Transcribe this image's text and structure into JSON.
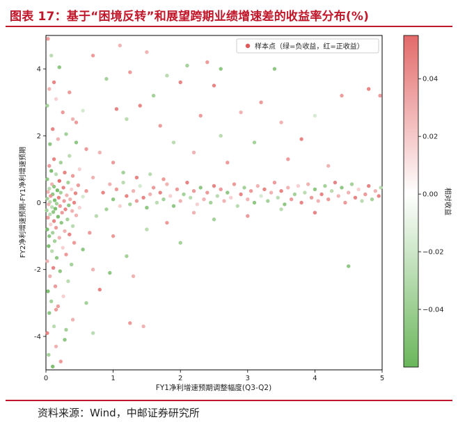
{
  "header": {
    "title": "图表 17：基于“困境反转”和展望跨期业绩增速差的收益率分布(%)"
  },
  "footer": {
    "source": "资料来源：Wind，中邮证券研究所"
  },
  "chart_data": {
    "type": "scatter",
    "xlabel": "FY1净利增速预期调整幅度(Q3-Q2)",
    "ylabel": "FY2净利增速预期-FY1净利增速预期",
    "xlim": [
      0,
      5
    ],
    "ylim": [
      -5,
      5
    ],
    "xticks": [
      "0",
      "1",
      "2",
      "3",
      "4",
      "5"
    ],
    "yticks": [
      "-4",
      "-2",
      "0",
      "2",
      "4"
    ],
    "grid": false,
    "legend": {
      "label": "样本点（绿=负收益，红=正收益）",
      "placement": "top-right"
    },
    "colorbar": {
      "label": "相对收益",
      "range": [
        -0.06,
        0.055
      ],
      "ticks": [
        "0.04",
        "0.02",
        "0.00",
        "−0.02",
        "−0.04"
      ],
      "tick_values": [
        0.04,
        0.02,
        0.0,
        -0.02,
        -0.04
      ],
      "colors": {
        "low": "#5fae4f",
        "mid": "#ffffff",
        "high": "#e05a5a"
      }
    },
    "points": [
      [
        0.03,
        4.9,
        0.03
      ],
      [
        0.08,
        4.4,
        -0.02
      ],
      [
        0.12,
        3.6,
        0.04
      ],
      [
        0.2,
        4.05,
        -0.04
      ],
      [
        0.05,
        3.4,
        0.02
      ],
      [
        0.15,
        3.1,
        0.01
      ],
      [
        0.02,
        2.9,
        -0.03
      ],
      [
        0.25,
        2.7,
        0.03
      ],
      [
        0.4,
        2.5,
        0.02
      ],
      [
        0.55,
        2.75,
        -0.01
      ],
      [
        0.45,
        2.4,
        0.03
      ],
      [
        0.1,
        2.2,
        0.04
      ],
      [
        0.3,
        2.05,
        -0.03
      ],
      [
        0.18,
        1.9,
        0.02
      ],
      [
        0.06,
        1.75,
        -0.04
      ],
      [
        0.6,
        1.6,
        0.03
      ],
      [
        0.8,
        1.5,
        0.02
      ],
      [
        0.35,
        1.4,
        -0.02
      ],
      [
        0.12,
        1.3,
        0.04
      ],
      [
        0.22,
        1.2,
        -0.03
      ],
      [
        0.05,
        1.1,
        0.03
      ],
      [
        0.5,
        1.0,
        0.01
      ],
      [
        0.08,
        0.95,
        -0.05
      ],
      [
        0.28,
        0.9,
        0.04
      ],
      [
        0.15,
        0.85,
        -0.02
      ],
      [
        0.4,
        0.8,
        0.03
      ],
      [
        0.7,
        0.75,
        0.02
      ],
      [
        0.02,
        0.7,
        -0.04
      ],
      [
        0.2,
        0.65,
        0.05
      ],
      [
        0.33,
        0.6,
        -0.03
      ],
      [
        0.09,
        0.55,
        0.02
      ],
      [
        0.48,
        0.52,
        0.03
      ],
      [
        0.12,
        0.48,
        -0.04
      ],
      [
        0.26,
        0.45,
        0.04
      ],
      [
        0.05,
        0.42,
        -0.02
      ],
      [
        0.38,
        0.4,
        0.01
      ],
      [
        0.17,
        0.37,
        -0.05
      ],
      [
        0.6,
        0.35,
        0.03
      ],
      [
        0.03,
        0.32,
        0.02
      ],
      [
        0.22,
        0.3,
        -0.03
      ],
      [
        0.44,
        0.28,
        0.04
      ],
      [
        0.1,
        0.25,
        -0.04
      ],
      [
        0.31,
        0.22,
        0.02
      ],
      [
        0.07,
        0.2,
        0.03
      ],
      [
        0.55,
        0.18,
        -0.01
      ],
      [
        0.19,
        0.15,
        0.04
      ],
      [
        0.02,
        0.12,
        -0.03
      ],
      [
        0.36,
        0.1,
        0.02
      ],
      [
        0.13,
        0.07,
        -0.05
      ],
      [
        0.27,
        0.05,
        0.03
      ],
      [
        0.06,
        0.02,
        -0.02
      ],
      [
        0.42,
        0.0,
        0.04
      ],
      [
        0.16,
        -0.03,
        -0.03
      ],
      [
        0.04,
        -0.05,
        0.02
      ],
      [
        0.34,
        -0.08,
        -0.04
      ],
      [
        0.21,
        -0.1,
        0.03
      ],
      [
        0.09,
        -0.13,
        -0.02
      ],
      [
        0.5,
        -0.15,
        0.01
      ],
      [
        0.14,
        -0.18,
        -0.05
      ],
      [
        0.29,
        -0.2,
        0.04
      ],
      [
        0.01,
        -0.23,
        -0.03
      ],
      [
        0.39,
        -0.25,
        0.02
      ],
      [
        0.11,
        -0.28,
        -0.04
      ],
      [
        0.24,
        -0.3,
        0.03
      ],
      [
        0.06,
        -0.35,
        -0.02
      ],
      [
        0.45,
        -0.38,
        0.02
      ],
      [
        0.18,
        -0.42,
        -0.05
      ],
      [
        0.03,
        -0.45,
        0.03
      ],
      [
        0.32,
        -0.5,
        -0.03
      ],
      [
        0.12,
        -0.55,
        0.04
      ],
      [
        0.23,
        -0.6,
        -0.04
      ],
      [
        0.07,
        -0.65,
        0.01
      ],
      [
        0.4,
        -0.7,
        -0.02
      ],
      [
        0.15,
        -0.75,
        0.03
      ],
      [
        0.02,
        -0.8,
        -0.05
      ],
      [
        0.28,
        -0.85,
        0.02
      ],
      [
        0.1,
        -0.9,
        -0.03
      ],
      [
        0.35,
        -0.95,
        0.04
      ],
      [
        0.05,
        -1.0,
        -0.04
      ],
      [
        0.2,
        -1.05,
        0.02
      ],
      [
        0.13,
        -1.15,
        -0.03
      ],
      [
        0.42,
        -1.2,
        0.03
      ],
      [
        0.04,
        -1.3,
        -0.05
      ],
      [
        0.25,
        -1.35,
        0.01
      ],
      [
        0.09,
        -1.45,
        -0.02
      ],
      [
        0.3,
        -1.55,
        0.03
      ],
      [
        0.16,
        -1.65,
        -0.04
      ],
      [
        0.02,
        -1.75,
        0.02
      ],
      [
        0.38,
        -1.85,
        -0.03
      ],
      [
        0.11,
        -1.95,
        0.04
      ],
      [
        0.21,
        -2.05,
        -0.04
      ],
      [
        0.06,
        -2.2,
        0.02
      ],
      [
        0.33,
        -2.35,
        -0.02
      ],
      [
        0.14,
        -2.5,
        0.03
      ],
      [
        0.03,
        -2.65,
        -0.05
      ],
      [
        0.26,
        -2.8,
        0.01
      ],
      [
        0.08,
        -2.95,
        -0.03
      ],
      [
        0.18,
        -3.1,
        0.03
      ],
      [
        0.05,
        -3.3,
        -0.04
      ],
      [
        0.4,
        -3.5,
        0.02
      ],
      [
        0.12,
        -3.7,
        -0.02
      ],
      [
        0.02,
        -3.9,
        0.04
      ],
      [
        0.28,
        -4.1,
        -0.04
      ],
      [
        0.15,
        -4.3,
        0.02
      ],
      [
        0.04,
        -4.55,
        -0.03
      ],
      [
        0.22,
        -4.75,
        0.03
      ],
      [
        0.1,
        -4.9,
        -0.05
      ],
      [
        0.6,
        -3.0,
        -0.03
      ],
      [
        0.7,
        -2.0,
        0.02
      ],
      [
        0.55,
        -1.4,
        -0.04
      ],
      [
        0.65,
        -0.9,
        0.03
      ],
      [
        0.75,
        -0.4,
        -0.02
      ],
      [
        0.85,
        0.3,
        0.04
      ],
      [
        0.9,
        -0.2,
        -0.03
      ],
      [
        0.95,
        0.55,
        0.02
      ],
      [
        1.0,
        0.1,
        -0.04
      ],
      [
        1.05,
        0.4,
        0.03
      ],
      [
        1.1,
        -0.1,
        0.01
      ],
      [
        1.15,
        0.6,
        -0.02
      ],
      [
        1.2,
        0.2,
        0.04
      ],
      [
        1.25,
        -0.05,
        -0.03
      ],
      [
        1.3,
        0.35,
        0.02
      ],
      [
        1.35,
        0.05,
        0.03
      ],
      [
        1.4,
        0.5,
        -0.01
      ],
      [
        1.45,
        0.15,
        0.04
      ],
      [
        1.5,
        -0.15,
        -0.04
      ],
      [
        1.55,
        0.25,
        0.02
      ],
      [
        1.6,
        0.45,
        0.03
      ],
      [
        1.65,
        0.0,
        -0.02
      ],
      [
        1.7,
        0.3,
        0.04
      ],
      [
        1.75,
        0.1,
        -0.03
      ],
      [
        1.8,
        0.55,
        0.02
      ],
      [
        1.85,
        0.2,
        0.01
      ],
      [
        1.9,
        -0.1,
        -0.04
      ],
      [
        1.95,
        0.4,
        0.03
      ],
      [
        2.0,
        0.05,
        0.02
      ],
      [
        2.05,
        0.25,
        -0.03
      ],
      [
        2.1,
        0.6,
        0.04
      ],
      [
        2.15,
        0.15,
        -0.02
      ],
      [
        2.2,
        0.35,
        0.03
      ],
      [
        2.25,
        -0.05,
        0.01
      ],
      [
        2.3,
        0.45,
        -0.04
      ],
      [
        2.35,
        0.1,
        0.02
      ],
      [
        2.4,
        0.3,
        0.03
      ],
      [
        2.45,
        0.0,
        -0.03
      ],
      [
        2.5,
        0.5,
        0.04
      ],
      [
        2.55,
        0.2,
        -0.02
      ],
      [
        2.6,
        0.4,
        0.03
      ],
      [
        2.65,
        0.05,
        0.02
      ],
      [
        2.7,
        0.3,
        -0.04
      ],
      [
        2.75,
        0.15,
        0.01
      ],
      [
        2.8,
        0.55,
        0.03
      ],
      [
        2.85,
        -0.1,
        -0.02
      ],
      [
        2.9,
        0.25,
        0.04
      ],
      [
        2.95,
        0.45,
        -0.03
      ],
      [
        3.0,
        0.1,
        0.02
      ],
      [
        3.05,
        0.35,
        0.03
      ],
      [
        3.1,
        0.0,
        -0.04
      ],
      [
        3.15,
        0.5,
        0.02
      ],
      [
        3.2,
        0.2,
        -0.01
      ],
      [
        3.25,
        0.4,
        0.04
      ],
      [
        3.3,
        0.05,
        -0.03
      ],
      [
        3.35,
        0.3,
        0.02
      ],
      [
        3.4,
        0.6,
        0.03
      ],
      [
        3.45,
        0.15,
        -0.02
      ],
      [
        3.5,
        0.35,
        0.04
      ],
      [
        3.55,
        -0.05,
        -0.04
      ],
      [
        3.6,
        0.45,
        0.02
      ],
      [
        3.65,
        0.1,
        0.03
      ],
      [
        3.7,
        0.25,
        -0.03
      ],
      [
        3.75,
        0.5,
        0.01
      ],
      [
        3.8,
        0.0,
        0.04
      ],
      [
        3.85,
        0.3,
        -0.02
      ],
      [
        3.9,
        0.55,
        0.02
      ],
      [
        3.95,
        0.15,
        0.03
      ],
      [
        4.0,
        0.4,
        -0.04
      ],
      [
        4.05,
        0.05,
        0.02
      ],
      [
        4.1,
        0.25,
        0.04
      ],
      [
        4.15,
        0.5,
        -0.03
      ],
      [
        4.2,
        0.1,
        0.03
      ],
      [
        4.25,
        0.35,
        -0.02
      ],
      [
        4.3,
        0.6,
        0.04
      ],
      [
        4.35,
        0.2,
        0.02
      ],
      [
        4.4,
        0.45,
        -0.04
      ],
      [
        4.45,
        0.0,
        0.03
      ],
      [
        4.5,
        0.3,
        0.02
      ],
      [
        4.55,
        0.55,
        -0.03
      ],
      [
        4.6,
        0.15,
        0.04
      ],
      [
        4.65,
        0.4,
        0.01
      ],
      [
        4.7,
        0.05,
        -0.02
      ],
      [
        4.75,
        0.25,
        0.03
      ],
      [
        4.8,
        0.5,
        0.04
      ],
      [
        4.85,
        0.1,
        -0.03
      ],
      [
        4.9,
        0.35,
        0.02
      ],
      [
        4.95,
        0.2,
        0.04
      ],
      [
        4.98,
        0.45,
        -0.02
      ],
      [
        1.0,
        1.2,
        0.03
      ],
      [
        1.05,
        2.8,
        0.04
      ],
      [
        1.2,
        2.5,
        -0.02
      ],
      [
        1.25,
        3.9,
        0.03
      ],
      [
        1.5,
        4.5,
        0.02
      ],
      [
        1.6,
        3.2,
        -0.03
      ],
      [
        1.7,
        2.3,
        0.03
      ],
      [
        1.9,
        1.8,
        -0.02
      ],
      [
        2.0,
        3.6,
        0.04
      ],
      [
        2.1,
        4.1,
        -0.03
      ],
      [
        2.2,
        1.5,
        0.02
      ],
      [
        2.3,
        2.6,
        0.03
      ],
      [
        2.5,
        3.5,
        0.04
      ],
      [
        2.6,
        2.0,
        -0.02
      ],
      [
        2.7,
        1.2,
        0.03
      ],
      [
        2.9,
        2.7,
        0.02
      ],
      [
        3.1,
        1.8,
        -0.03
      ],
      [
        3.2,
        3.0,
        0.03
      ],
      [
        3.4,
        4.0,
        -0.04
      ],
      [
        3.5,
        2.4,
        0.02
      ],
      [
        3.6,
        1.3,
        0.03
      ],
      [
        3.8,
        1.9,
        0.04
      ],
      [
        4.0,
        2.6,
        -0.01
      ],
      [
        4.2,
        1.1,
        0.02
      ],
      [
        4.4,
        3.2,
        0.03
      ],
      [
        4.5,
        -1.9,
        -0.04
      ],
      [
        4.8,
        3.4,
        0.04
      ],
      [
        4.97,
        3.2,
        0.03
      ],
      [
        0.7,
        4.4,
        0.03
      ],
      [
        0.9,
        3.7,
        -0.03
      ],
      [
        1.1,
        4.7,
        0.02
      ],
      [
        1.4,
        2.9,
        0.04
      ],
      [
        1.8,
        3.8,
        -0.02
      ],
      [
        2.4,
        4.2,
        0.03
      ],
      [
        2.6,
        4.0,
        -0.04
      ],
      [
        3.0,
        4.6,
        0.02
      ],
      [
        1.0,
        -1.0,
        0.03
      ],
      [
        1.2,
        -1.6,
        -0.03
      ],
      [
        1.3,
        -2.2,
        0.02
      ],
      [
        1.5,
        -0.8,
        -0.02
      ],
      [
        1.8,
        -0.6,
        0.03
      ],
      [
        2.0,
        -1.2,
        -0.03
      ],
      [
        0.8,
        -2.6,
        0.04
      ],
      [
        0.7,
        -3.9,
        -0.02
      ],
      [
        1.25,
        -3.6,
        0.03
      ],
      [
        1.45,
        -3.7,
        0.02
      ],
      [
        0.95,
        -2.1,
        -0.04
      ],
      [
        2.2,
        -0.3,
        0.02
      ],
      [
        2.5,
        -0.5,
        -0.03
      ],
      [
        3.0,
        -0.4,
        0.03
      ],
      [
        3.5,
        -0.2,
        -0.02
      ],
      [
        4.0,
        -0.3,
        0.04
      ],
      [
        1.15,
        0.9,
        -0.03
      ],
      [
        1.35,
        0.75,
        0.04
      ],
      [
        1.55,
        0.85,
        -0.02
      ],
      [
        1.75,
        0.7,
        0.03
      ],
      [
        0.35,
        3.3,
        0.03
      ],
      [
        0.45,
        1.8,
        -0.04
      ],
      [
        0.15,
        -3.2,
        0.03
      ],
      [
        0.3,
        -3.8,
        -0.03
      ]
    ]
  }
}
